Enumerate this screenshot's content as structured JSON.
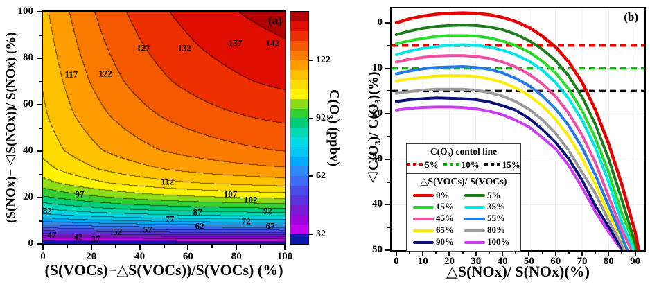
{
  "chart_data": [
    {
      "type": "contour",
      "panel": "a",
      "marker": "(a)",
      "xlabel": "(S(VOCs)−△S(VOCs))/S(VOCs) (%)",
      "ylabel": "(S(NOx)−△S(NOx))/ S(NOx) (%)",
      "xlim": [
        0,
        100
      ],
      "ylim": [
        0,
        100
      ],
      "x_ticks": [
        0,
        20,
        40,
        60,
        80,
        100
      ],
      "y_ticks": [
        0,
        20,
        40,
        60,
        80,
        100
      ],
      "x_minor_ticks": [
        10,
        30,
        50,
        70,
        90
      ],
      "y_minor_ticks": [
        10,
        30,
        50,
        70,
        90
      ],
      "grid": false,
      "colorbar": {
        "label": "C(O₃) (ppbv)",
        "tick_values": [
          122,
          92,
          62,
          32
        ],
        "value_min": 27,
        "value_max": 147,
        "level_step": 5,
        "band_colors_low_to_high": [
          "#0d17ad",
          "#c400ec",
          "#9c05dc",
          "#7a1bd6",
          "#5c33e0",
          "#4b4ce8",
          "#3f6cf4",
          "#2e8cfa",
          "#00aaff",
          "#00c8f2",
          "#00d9e6",
          "#00d9b3",
          "#00cc7a",
          "#33cf33",
          "#8cdc16",
          "#fdf200",
          "#ffdc00",
          "#ffc100",
          "#ff9d00",
          "#fb7a00",
          "#f45800",
          "#ee3000",
          "#e00e00",
          "#b00000"
        ]
      },
      "contour_line_labels": [
        {
          "value": 142,
          "x": 95,
          "y": 86.5
        },
        {
          "value": 137,
          "x": 79.5,
          "y": 86.5
        },
        {
          "value": 132,
          "x": 58.5,
          "y": 84.5
        },
        {
          "value": 127,
          "x": 41.5,
          "y": 84.5
        },
        {
          "value": 122,
          "x": 25.8,
          "y": 73.3
        },
        {
          "value": 117,
          "x": 11.7,
          "y": 73.2
        },
        {
          "value": 112,
          "x": 51.5,
          "y": 27
        },
        {
          "value": 107,
          "x": 77.5,
          "y": 21.6
        },
        {
          "value": 102,
          "x": 85.9,
          "y": 19
        },
        {
          "value": 97,
          "x": 15.2,
          "y": 21.6
        },
        {
          "value": 92,
          "x": 93,
          "y": 14.3
        },
        {
          "value": 87,
          "x": 63.9,
          "y": 13.8
        },
        {
          "value": 82,
          "x": 1.8,
          "y": 14.3
        },
        {
          "value": 77,
          "x": 52.4,
          "y": 10.8
        },
        {
          "value": 72,
          "x": 84,
          "y": 9.9
        },
        {
          "value": 67,
          "x": 94,
          "y": 7.8
        },
        {
          "value": 62,
          "x": 64.8,
          "y": 7.8
        },
        {
          "value": 57,
          "x": 43.3,
          "y": 6.4
        },
        {
          "value": 52,
          "x": 30.9,
          "y": 5.4
        },
        {
          "value": 47,
          "x": 3.7,
          "y": 3.9
        },
        {
          "value": 42,
          "x": 14.6,
          "y": 3.0
        },
        {
          "value": 37,
          "x": 21.8,
          "y": 2.1
        }
      ]
    },
    {
      "type": "line",
      "panel": "b",
      "marker": "(b)",
      "xlabel": "△S(NOx)/ S(NOx)(%)",
      "ylabel": "△C(O₃)/ C(O₃)(%)",
      "xlim": [
        -1.8,
        93.5
      ],
      "ylim_top_to_bottom": [
        -3.2,
        50
      ],
      "y_inverted": true,
      "x_ticks": [
        0,
        10,
        20,
        30,
        40,
        50,
        60,
        70,
        80,
        90
      ],
      "y_ticks": [
        0,
        10,
        20,
        30,
        40,
        50
      ],
      "x_minor_ticks": [
        5,
        15,
        25,
        35,
        45,
        55,
        65,
        75,
        85
      ],
      "y_minor_ticks": [
        5,
        15,
        25,
        35,
        45
      ],
      "grid": true,
      "grid_color": "#ececec",
      "control_lines": {
        "title": "C(O₃) contol line",
        "items": [
          {
            "label": "5%",
            "value": 5,
            "color": "#ee0000"
          },
          {
            "label": "10%",
            "value": 10,
            "color": "#00bb00"
          },
          {
            "label": "15%",
            "value": 15,
            "color": "#111111"
          }
        ]
      },
      "series_legend_title": "△S(VOCs)/ S(VOCs)",
      "series": [
        {
          "label": "0%",
          "color": "#e60000",
          "points": [
            [
              0,
              0
            ],
            [
              5,
              -0.9
            ],
            [
              10,
              -1.5
            ],
            [
              15,
              -1.9
            ],
            [
              20,
              -2.1
            ],
            [
              25,
              -2.2
            ],
            [
              30,
              -2.1
            ],
            [
              35,
              -1.8
            ],
            [
              40,
              -1.2
            ],
            [
              45,
              -0.3
            ],
            [
              50,
              1
            ],
            [
              55,
              2.9
            ],
            [
              60,
              5.3
            ],
            [
              65,
              8.6
            ],
            [
              70,
              13.1
            ],
            [
              75,
              19.1
            ],
            [
              80,
              26.6
            ],
            [
              85,
              35.6
            ],
            [
              90,
              46
            ],
            [
              92,
              52
            ]
          ]
        },
        {
          "label": "5%",
          "color": "#1d7d1d",
          "points": [
            [
              0,
              2.6
            ],
            [
              5,
              1.8
            ],
            [
              10,
              1.2
            ],
            [
              15,
              0.8
            ],
            [
              20,
              0.6
            ],
            [
              25,
              0.5
            ],
            [
              30,
              0.6
            ],
            [
              35,
              0.9
            ],
            [
              40,
              1.5
            ],
            [
              45,
              2.5
            ],
            [
              50,
              3.9
            ],
            [
              55,
              5.8
            ],
            [
              60,
              8.3
            ],
            [
              65,
              11.7
            ],
            [
              70,
              16.3
            ],
            [
              75,
              22.3
            ],
            [
              80,
              29.9
            ],
            [
              85,
              38.9
            ],
            [
              90,
              48.5
            ],
            [
              91.8,
              53.5
            ]
          ]
        },
        {
          "label": "15%",
          "color": "#2bdb2b",
          "points": [
            [
              0,
              4.6
            ],
            [
              5,
              3.9
            ],
            [
              10,
              3.4
            ],
            [
              15,
              3
            ],
            [
              20,
              2.8
            ],
            [
              25,
              2.8
            ],
            [
              30,
              2.9
            ],
            [
              35,
              3.3
            ],
            [
              40,
              4
            ],
            [
              45,
              5
            ],
            [
              50,
              6.4
            ],
            [
              55,
              8.4
            ],
            [
              60,
              11
            ],
            [
              65,
              14.6
            ],
            [
              70,
              19.3
            ],
            [
              75,
              25.3
            ],
            [
              80,
              32.9
            ],
            [
              85,
              41.9
            ],
            [
              90,
              49.2
            ],
            [
              91.5,
              54
            ]
          ]
        },
        {
          "label": "35%",
          "color": "#00e6e6",
          "points": [
            [
              0,
              7
            ],
            [
              5,
              6.2
            ],
            [
              10,
              5.6
            ],
            [
              15,
              5.2
            ],
            [
              20,
              4.9
            ],
            [
              25,
              4.8
            ],
            [
              30,
              4.9
            ],
            [
              35,
              5.3
            ],
            [
              40,
              6
            ],
            [
              45,
              7
            ],
            [
              50,
              8.4
            ],
            [
              55,
              10.4
            ],
            [
              60,
              13.1
            ],
            [
              65,
              16.7
            ],
            [
              70,
              21.4
            ],
            [
              75,
              27.4
            ],
            [
              80,
              35
            ],
            [
              85,
              44
            ],
            [
              89,
              49.3
            ],
            [
              91,
              54.5
            ]
          ]
        },
        {
          "label": "45%",
          "color": "#ee4fa2",
          "points": [
            [
              0,
              8.6
            ],
            [
              5,
              8
            ],
            [
              10,
              7.6
            ],
            [
              15,
              7.3
            ],
            [
              20,
              7.2
            ],
            [
              25,
              7.2
            ],
            [
              30,
              7.4
            ],
            [
              35,
              7.8
            ],
            [
              40,
              8.6
            ],
            [
              45,
              9.7
            ],
            [
              50,
              11.3
            ],
            [
              55,
              13.4
            ],
            [
              60,
              16.2
            ],
            [
              65,
              19.9
            ],
            [
              70,
              24.7
            ],
            [
              75,
              30.7
            ],
            [
              80,
              38.2
            ],
            [
              85,
              45.6
            ],
            [
              89,
              50.4
            ],
            [
              90.5,
              54.5
            ]
          ]
        },
        {
          "label": "55%",
          "color": "#2679e8",
          "points": [
            [
              0,
              11.2
            ],
            [
              5,
              10.6
            ],
            [
              10,
              10.1
            ],
            [
              15,
              9.8
            ],
            [
              20,
              9.7
            ],
            [
              25,
              9.6
            ],
            [
              30,
              9.8
            ],
            [
              35,
              10.2
            ],
            [
              40,
              11
            ],
            [
              45,
              12.2
            ],
            [
              50,
              13.8
            ],
            [
              55,
              16
            ],
            [
              60,
              18.9
            ],
            [
              65,
              22.6
            ],
            [
              70,
              27.4
            ],
            [
              75,
              33.4
            ],
            [
              80,
              40.2
            ],
            [
              85,
              47
            ],
            [
              88,
              51.5
            ],
            [
              89,
              54
            ]
          ]
        },
        {
          "label": "65%",
          "color": "#ffee00",
          "points": [
            [
              0,
              12.8
            ],
            [
              5,
              12.3
            ],
            [
              10,
              12
            ],
            [
              15,
              11.7
            ],
            [
              20,
              11.6
            ],
            [
              25,
              11.6
            ],
            [
              30,
              11.8
            ],
            [
              35,
              12.3
            ],
            [
              40,
              13.1
            ],
            [
              45,
              14.3
            ],
            [
              50,
              16
            ],
            [
              55,
              18.2
            ],
            [
              60,
              21.2
            ],
            [
              65,
              25
            ],
            [
              70,
              29.8
            ],
            [
              75,
              35.5
            ],
            [
              80,
              42
            ],
            [
              85,
              47.4
            ],
            [
              88.5,
              52.5
            ]
          ]
        },
        {
          "label": "80%",
          "color": "#9a9a9a",
          "points": [
            [
              0,
              15.5
            ],
            [
              5,
              15.1
            ],
            [
              10,
              14.8
            ],
            [
              15,
              14.6
            ],
            [
              20,
              14.6
            ],
            [
              25,
              14.6
            ],
            [
              30,
              14.8
            ],
            [
              35,
              15.3
            ],
            [
              40,
              16.1
            ],
            [
              45,
              17.3
            ],
            [
              50,
              19
            ],
            [
              55,
              21.3
            ],
            [
              60,
              24.3
            ],
            [
              65,
              28.1
            ],
            [
              70,
              32.9
            ],
            [
              75,
              37.5
            ],
            [
              80,
              43.5
            ],
            [
              85,
              48.8
            ],
            [
              88,
              53
            ]
          ]
        },
        {
          "label": "90%",
          "color": "#0a1178",
          "points": [
            [
              0,
              17.3
            ],
            [
              5,
              16.9
            ],
            [
              10,
              16.7
            ],
            [
              15,
              16.5
            ],
            [
              20,
              16.6
            ],
            [
              25,
              16.7
            ],
            [
              30,
              16.9
            ],
            [
              35,
              17.4
            ],
            [
              40,
              18.2
            ],
            [
              45,
              19.2
            ],
            [
              50,
              21
            ],
            [
              55,
              23.4
            ],
            [
              60,
              26.3
            ],
            [
              65,
              29.9
            ],
            [
              70,
              34.6
            ],
            [
              75,
              40.2
            ],
            [
              80,
              44.9
            ],
            [
              85,
              49.6
            ],
            [
              87.5,
              53.2
            ]
          ]
        },
        {
          "label": "100%",
          "color": "#cb3df2",
          "points": [
            [
              0,
              19.2
            ],
            [
              5,
              18.8
            ],
            [
              10,
              18.6
            ],
            [
              15,
              18.5
            ],
            [
              20,
              18.5
            ],
            [
              25,
              18.6
            ],
            [
              30,
              18.9
            ],
            [
              35,
              19.4
            ],
            [
              40,
              20.2
            ],
            [
              45,
              21.4
            ],
            [
              50,
              22.9
            ],
            [
              55,
              25.2
            ],
            [
              60,
              27.7
            ],
            [
              65,
              31.4
            ],
            [
              70,
              36.2
            ],
            [
              75,
              41.5
            ],
            [
              80,
              46
            ],
            [
              85,
              50
            ],
            [
              86.5,
              52.5
            ]
          ]
        }
      ]
    }
  ]
}
